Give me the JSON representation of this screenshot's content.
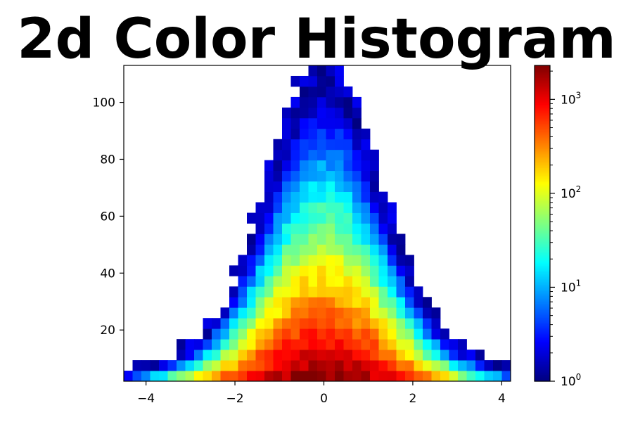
{
  "chart_data": {
    "type": "heatmap",
    "title": "2d Color Histogram",
    "xlabel": "",
    "ylabel": "",
    "xlim": [
      -4.5,
      4.2
    ],
    "ylim": [
      2,
      113
    ],
    "x_ticks": [
      "−4",
      "−2",
      "0",
      "2",
      "4"
    ],
    "x_tick_values": [
      -4,
      -2,
      0,
      2,
      4
    ],
    "y_ticks": [
      "20",
      "40",
      "60",
      "80",
      "100"
    ],
    "y_tick_values": [
      20,
      40,
      60,
      80,
      100
    ],
    "colormap": "jet",
    "color_scale": "log",
    "colorbar_range": [
      1,
      2300
    ],
    "colorbar_ticks": [
      {
        "value": 1,
        "base": "10",
        "exp": "0"
      },
      {
        "value": 10,
        "base": "10",
        "exp": "1"
      },
      {
        "value": 100,
        "base": "10",
        "exp": "2"
      },
      {
        "value": 1000,
        "base": "10",
        "exp": "3"
      }
    ],
    "bins_x": 44,
    "bins_y": 30,
    "grid": false,
    "distribution": "x ~ Normal(0, 1.3); y counts decay from a peak of ~2300 near x=0, y=2 toward the outer envelope |x|≈4 at y≈2 and y≈112 at x≈1.4"
  }
}
